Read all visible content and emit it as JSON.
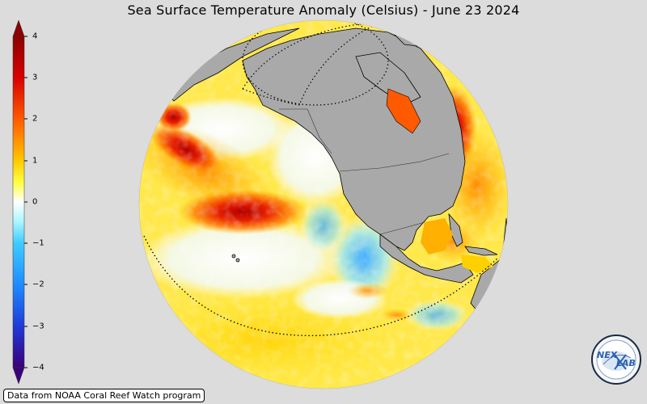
{
  "title": "Sea Surface Temperature Anomaly (Celsius) - June 23 2024",
  "colorbar": {
    "ticks": [
      "4",
      "3",
      "2",
      "1",
      "0",
      "−1",
      "−2",
      "−3",
      "−4"
    ],
    "tick_values": [
      4,
      3,
      2,
      1,
      0,
      -1,
      -2,
      -3,
      -4
    ],
    "range": [
      -4,
      4
    ],
    "colors": [
      "#3a007a",
      "#1f4fe0",
      "#23a7ff",
      "#a9f4ff",
      "#ffffff",
      "#ffff2c",
      "#ffb000",
      "#ff2a00",
      "#8c0000"
    ]
  },
  "source": "Data from NOAA Coral Reef Watch program",
  "logo_text": "NEXLAB",
  "colors": {
    "background": "#dcdcdc",
    "land": "#a9a9a9",
    "coastline": "#000000"
  }
}
